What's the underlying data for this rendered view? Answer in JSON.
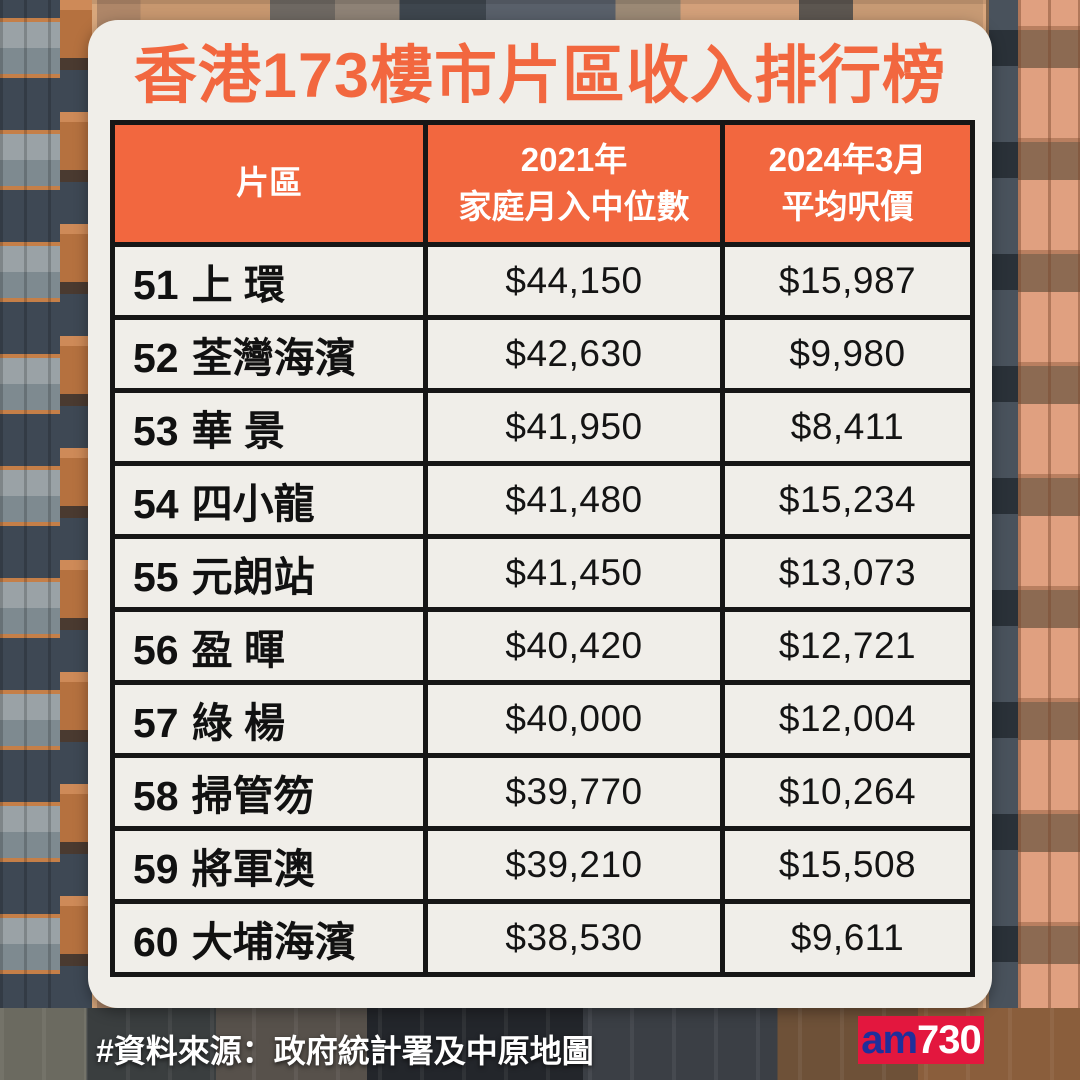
{
  "title": "香港173樓市片區收入排行榜",
  "table": {
    "col_district": "片區",
    "col_income_line1": "2021年",
    "col_income_line2": "家庭月入中位數",
    "col_price_line1": "2024年3月",
    "col_price_line2": "平均呎價",
    "rows": [
      {
        "rank": "51",
        "district": "上 環",
        "income": "$44,150",
        "price": "$15,987"
      },
      {
        "rank": "52",
        "district": "荃灣海濱",
        "income": "$42,630",
        "price": "$9,980"
      },
      {
        "rank": "53",
        "district": "華 景",
        "income": "$41,950",
        "price": "$8,411"
      },
      {
        "rank": "54",
        "district": "四小龍",
        "income": "$41,480",
        "price": "$15,234"
      },
      {
        "rank": "55",
        "district": "元朗站",
        "income": "$41,450",
        "price": "$13,073"
      },
      {
        "rank": "56",
        "district": "盈 暉",
        "income": "$40,420",
        "price": "$12,721"
      },
      {
        "rank": "57",
        "district": "綠 楊",
        "income": "$40,000",
        "price": "$12,004"
      },
      {
        "rank": "58",
        "district": "掃管笏",
        "income": "$39,770",
        "price": "$10,264"
      },
      {
        "rank": "59",
        "district": "將軍澳",
        "income": "$39,210",
        "price": "$15,508"
      },
      {
        "rank": "60",
        "district": "大埔海濱",
        "income": "$38,530",
        "price": "$9,611"
      }
    ]
  },
  "footer": {
    "source_note": "#資料來源：政府統計署及中原地圖"
  },
  "logo": {
    "part_blue": "am",
    "part_white": "730"
  },
  "colors": {
    "accent_orange": "#F2673F",
    "card_bg": "#F0EEE9",
    "border_black": "#161616",
    "logo_red": "#E3173E",
    "logo_blue": "#1F2F9B"
  },
  "chart_data": {
    "type": "table",
    "title": "香港173樓市片區收入排行榜",
    "columns": [
      "片區",
      "2021年 家庭月入中位數",
      "2024年3月 平均呎價"
    ],
    "rows": [
      [
        "51 上環",
        "$44,150",
        "$15,987"
      ],
      [
        "52 荃灣海濱",
        "$42,630",
        "$9,980"
      ],
      [
        "53 華景",
        "$41,950",
        "$8,411"
      ],
      [
        "54 四小龍",
        "$41,480",
        "$15,234"
      ],
      [
        "55 元朗站",
        "$41,450",
        "$13,073"
      ],
      [
        "56 盈暉",
        "$40,420",
        "$12,721"
      ],
      [
        "57 綠楊",
        "$40,000",
        "$12,004"
      ],
      [
        "58 掃管笏",
        "$39,770",
        "$10,264"
      ],
      [
        "59 將軍澳",
        "$39,210",
        "$15,508"
      ],
      [
        "60 大埔海濱",
        "$38,530",
        "$9,611"
      ]
    ],
    "source": "#資料來源：政府統計署及中原地圖",
    "layout_hints": {
      "header_bg": "#F2673F",
      "grid": true,
      "rank_range_shown": [
        51,
        60
      ],
      "total_districts": 173
    }
  }
}
